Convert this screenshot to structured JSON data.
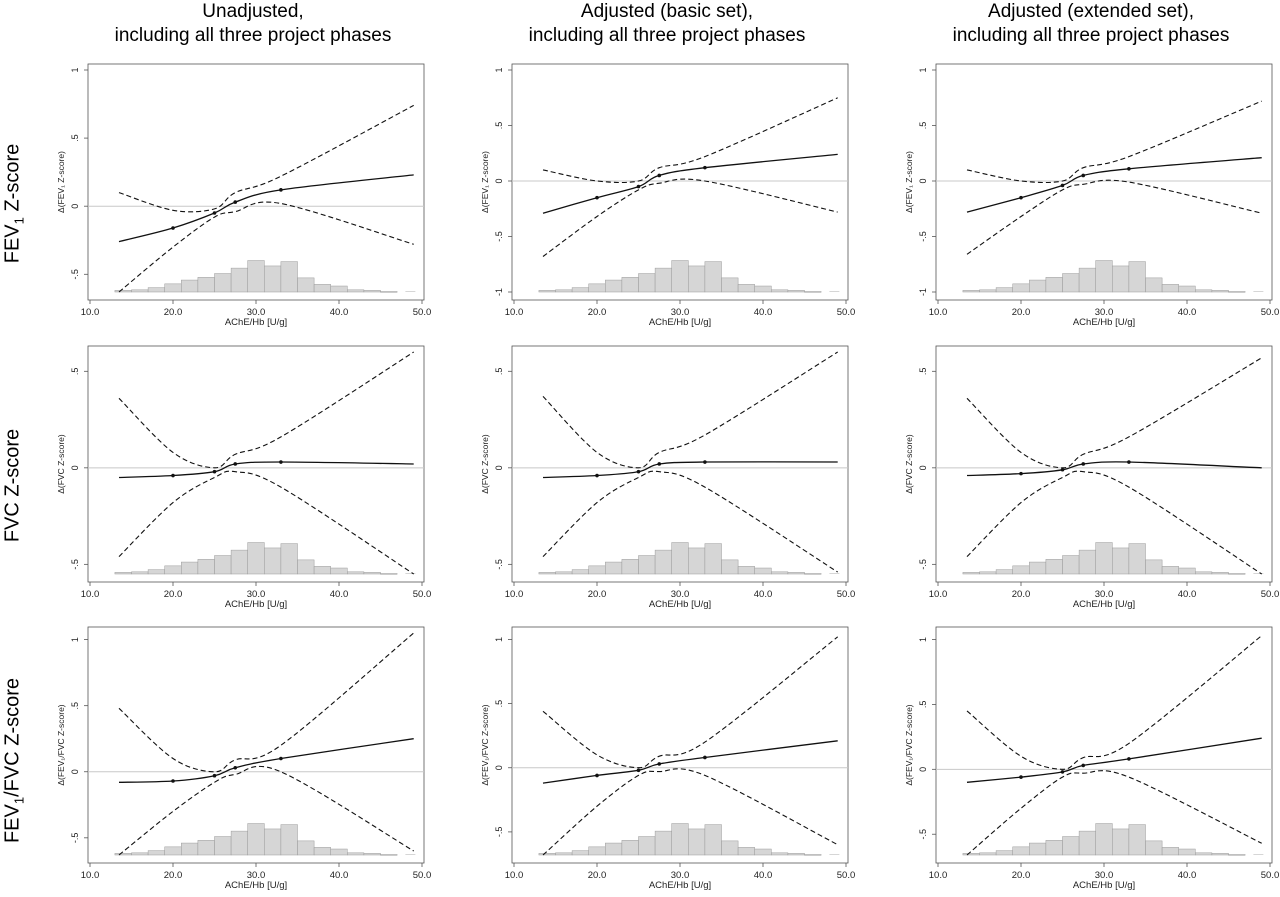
{
  "column_titles": [
    {
      "line1": "Unadjusted,",
      "line2": "including all three project phases"
    },
    {
      "line1": "Adjusted (basic set),",
      "line2": "including all three project phases"
    },
    {
      "line1": "Adjusted (extended set),",
      "line2": "including all three project phases"
    }
  ],
  "row_labels": [
    {
      "main": "FEV",
      "sub": "1",
      "rest": " Z-score"
    },
    {
      "main": "FVC Z-score",
      "sub": "",
      "rest": ""
    },
    {
      "main": "FEV",
      "sub": "1",
      "rest": "/FVC Z-score"
    }
  ],
  "colors": {
    "axis": "#555555",
    "reference_line": "#c8c8c8",
    "histogram_fill": "#d6d6d6",
    "histogram_stroke": "#9a9a9a",
    "estimate": "#111111"
  },
  "chart_data": [
    {
      "type": "line",
      "title": "Unadjusted, including all three project phases",
      "row": 0,
      "col": 0,
      "xlabel": "AChE/Hb [U/g]",
      "ylabel": "Δ(FEV₁ Z-score)",
      "xlim": [
        10,
        50
      ],
      "ylim": [
        -0.63,
        1.0
      ],
      "xticks": [
        "10.0",
        "20.0",
        "30.0",
        "40.0",
        "50.0"
      ],
      "yticks": [
        "-.5",
        "0",
        ".5",
        "1"
      ],
      "x": [
        13.5,
        20,
        25,
        27.5,
        33,
        49
      ],
      "series": [
        {
          "values": [
            -0.26,
            -0.16,
            -0.05,
            0.03,
            0.12,
            0.23
          ]
        },
        {
          "values": [
            0.1,
            -0.03,
            -0.02,
            0.1,
            0.22,
            0.74
          ]
        },
        {
          "values": [
            -0.63,
            -0.3,
            -0.08,
            -0.04,
            0.02,
            -0.28
          ]
        }
      ],
      "histogram": [
        0.03,
        0.04,
        0.08,
        0.15,
        0.22,
        0.27,
        0.34,
        0.44,
        0.58,
        0.48,
        0.56,
        0.26,
        0.14,
        0.11,
        0.04,
        0.03,
        0.01
      ]
    },
    {
      "type": "line",
      "title": "Adjusted (basic set), including all three project phases",
      "row": 0,
      "col": 1,
      "xlabel": "AChE/Hb [U/g]",
      "ylabel": "Δ(FEV₁ Z-score)",
      "xlim": [
        10,
        50
      ],
      "ylim": [
        -1.0,
        1.0
      ],
      "xticks": [
        "10.0",
        "20.0",
        "30.0",
        "40.0",
        "50.0"
      ],
      "yticks": [
        "-1",
        "-.5",
        "0",
        ".5",
        "1"
      ],
      "x": [
        13.5,
        20,
        25,
        27.5,
        33,
        49
      ],
      "series": [
        {
          "values": [
            -0.29,
            -0.15,
            -0.05,
            0.05,
            0.12,
            0.24
          ]
        },
        {
          "values": [
            0.1,
            0.0,
            0.0,
            0.12,
            0.22,
            0.75
          ]
        },
        {
          "values": [
            -0.68,
            -0.32,
            -0.08,
            -0.02,
            0.0,
            -0.28
          ]
        }
      ],
      "histogram": [
        0.03,
        0.04,
        0.08,
        0.15,
        0.22,
        0.27,
        0.34,
        0.44,
        0.58,
        0.48,
        0.56,
        0.26,
        0.14,
        0.11,
        0.04,
        0.03,
        0.01
      ]
    },
    {
      "type": "line",
      "title": "Adjusted (extended set), including all three project phases",
      "row": 0,
      "col": 2,
      "xlabel": "AChE/Hb [U/g]",
      "ylabel": "Δ(FEV₁ Z-score)",
      "xlim": [
        10,
        50
      ],
      "ylim": [
        -1.0,
        1.0
      ],
      "xticks": [
        "10.0",
        "20.0",
        "30.0",
        "40.0",
        "50.0"
      ],
      "yticks": [
        "-1",
        "-.5",
        "0",
        ".5",
        "1"
      ],
      "x": [
        13.5,
        20,
        25,
        27.5,
        33,
        49
      ],
      "series": [
        {
          "values": [
            -0.28,
            -0.15,
            -0.04,
            0.05,
            0.11,
            0.21
          ]
        },
        {
          "values": [
            0.1,
            0.0,
            0.0,
            0.12,
            0.22,
            0.72
          ]
        },
        {
          "values": [
            -0.66,
            -0.32,
            -0.08,
            -0.03,
            -0.01,
            -0.29
          ]
        }
      ],
      "histogram": [
        0.03,
        0.04,
        0.08,
        0.15,
        0.22,
        0.27,
        0.34,
        0.44,
        0.58,
        0.48,
        0.56,
        0.26,
        0.14,
        0.11,
        0.04,
        0.03,
        0.01
      ]
    },
    {
      "type": "line",
      "title": "Unadjusted, including all three project phases",
      "row": 1,
      "col": 0,
      "xlabel": "AChE/Hb [U/g]",
      "ylabel": "Δ(FVC Z-score)",
      "xlim": [
        10,
        50
      ],
      "ylim": [
        -0.55,
        0.6
      ],
      "xticks": [
        "10.0",
        "20.0",
        "30.0",
        "40.0",
        "50.0"
      ],
      "yticks": [
        "-.5",
        "0",
        ".5"
      ],
      "x": [
        13.5,
        20,
        25,
        27.5,
        33,
        49
      ],
      "series": [
        {
          "values": [
            -0.05,
            -0.04,
            -0.02,
            0.02,
            0.03,
            0.02
          ]
        },
        {
          "values": [
            0.36,
            0.08,
            0.0,
            0.07,
            0.16,
            0.6
          ]
        },
        {
          "values": [
            -0.46,
            -0.18,
            -0.05,
            -0.02,
            -0.1,
            -0.55
          ]
        }
      ],
      "histogram": [
        0.03,
        0.04,
        0.08,
        0.15,
        0.22,
        0.27,
        0.34,
        0.44,
        0.58,
        0.48,
        0.56,
        0.26,
        0.14,
        0.11,
        0.04,
        0.03,
        0.01
      ]
    },
    {
      "type": "line",
      "title": "Adjusted (basic set), including all three project phases",
      "row": 1,
      "col": 1,
      "xlabel": "AChE/Hb [U/g]",
      "ylabel": "Δ(FVC Z-score)",
      "xlim": [
        10,
        50
      ],
      "ylim": [
        -0.55,
        0.6
      ],
      "xticks": [
        "10.0",
        "20.0",
        "30.0",
        "40.0",
        "50.0"
      ],
      "yticks": [
        "-.5",
        "0",
        ".5"
      ],
      "x": [
        13.5,
        20,
        25,
        27.5,
        33,
        49
      ],
      "series": [
        {
          "values": [
            -0.05,
            -0.04,
            -0.02,
            0.02,
            0.03,
            0.03
          ]
        },
        {
          "values": [
            0.37,
            0.08,
            0.0,
            0.08,
            0.17,
            0.6
          ]
        },
        {
          "values": [
            -0.46,
            -0.18,
            -0.05,
            -0.02,
            -0.1,
            -0.54
          ]
        }
      ],
      "histogram": [
        0.03,
        0.04,
        0.08,
        0.15,
        0.22,
        0.27,
        0.34,
        0.44,
        0.58,
        0.48,
        0.56,
        0.26,
        0.14,
        0.11,
        0.04,
        0.03,
        0.01
      ]
    },
    {
      "type": "line",
      "title": "Adjusted (extended set), including all three project phases",
      "row": 1,
      "col": 2,
      "xlabel": "AChE/Hb [U/g]",
      "ylabel": "Δ(FVC Z-score)",
      "xlim": [
        10,
        50
      ],
      "ylim": [
        -0.55,
        0.6
      ],
      "xticks": [
        "10.0",
        "20.0",
        "30.0",
        "40.0",
        "50.0"
      ],
      "yticks": [
        "-.5",
        "0",
        ".5"
      ],
      "x": [
        13.5,
        20,
        25,
        27.5,
        33,
        49
      ],
      "series": [
        {
          "values": [
            -0.04,
            -0.03,
            -0.01,
            0.02,
            0.03,
            0.0
          ]
        },
        {
          "values": [
            0.36,
            0.08,
            0.0,
            0.07,
            0.16,
            0.57
          ]
        },
        {
          "values": [
            -0.46,
            -0.18,
            -0.05,
            -0.02,
            -0.1,
            -0.55
          ]
        }
      ],
      "histogram": [
        0.03,
        0.04,
        0.08,
        0.15,
        0.22,
        0.27,
        0.34,
        0.44,
        0.58,
        0.48,
        0.56,
        0.26,
        0.14,
        0.11,
        0.04,
        0.03,
        0.01
      ]
    },
    {
      "type": "line",
      "title": "Unadjusted, including all three project phases",
      "row": 2,
      "col": 0,
      "xlabel": "AChE/Hb [U/g]",
      "ylabel": "Δ(FEV₁/FVC Z-score)",
      "xlim": [
        10,
        50
      ],
      "ylim": [
        -0.63,
        1.05
      ],
      "xticks": [
        "10.0",
        "20.0",
        "30.0",
        "40.0",
        "50.0"
      ],
      "yticks": [
        "-.5",
        "0",
        ".5",
        "1"
      ],
      "x": [
        13.5,
        20,
        25,
        27.5,
        33,
        49
      ],
      "series": [
        {
          "values": [
            -0.08,
            -0.07,
            -0.03,
            0.03,
            0.1,
            0.25
          ]
        },
        {
          "values": [
            0.48,
            0.1,
            0.0,
            0.09,
            0.2,
            1.05
          ]
        },
        {
          "values": [
            -0.63,
            -0.3,
            -0.08,
            -0.02,
            0.0,
            -0.6
          ]
        }
      ],
      "histogram": [
        0.03,
        0.04,
        0.08,
        0.15,
        0.22,
        0.27,
        0.34,
        0.44,
        0.58,
        0.48,
        0.56,
        0.26,
        0.14,
        0.11,
        0.04,
        0.03,
        0.01
      ]
    },
    {
      "type": "line",
      "title": "Adjusted (basic set), including all three project phases",
      "row": 2,
      "col": 1,
      "xlabel": "AChE/Hb [U/g]",
      "ylabel": "Δ(FEV₁/FVC Z-score)",
      "xlim": [
        10,
        50
      ],
      "ylim": [
        -0.68,
        1.05
      ],
      "xticks": [
        "10.0",
        "20.0",
        "30.0",
        "40.0",
        "50.0"
      ],
      "yticks": [
        "-.5",
        "0",
        ".5",
        "1"
      ],
      "x": [
        13.5,
        20,
        25,
        27.5,
        33,
        49
      ],
      "series": [
        {
          "values": [
            -0.12,
            -0.06,
            -0.02,
            0.03,
            0.08,
            0.21
          ]
        },
        {
          "values": [
            0.44,
            0.1,
            0.0,
            0.09,
            0.2,
            1.02
          ]
        },
        {
          "values": [
            -0.68,
            -0.3,
            -0.06,
            -0.03,
            -0.06,
            -0.6
          ]
        }
      ],
      "histogram": [
        0.03,
        0.04,
        0.08,
        0.15,
        0.22,
        0.27,
        0.34,
        0.44,
        0.58,
        0.48,
        0.56,
        0.26,
        0.14,
        0.11,
        0.04,
        0.03,
        0.01
      ]
    },
    {
      "type": "line",
      "title": "Adjusted (extended set), including all three project phases",
      "row": 2,
      "col": 2,
      "xlabel": "AChE/Hb [U/g]",
      "ylabel": "Δ(FEV₁/FVC Z-score)",
      "xlim": [
        10,
        50
      ],
      "ylim": [
        -0.66,
        1.05
      ],
      "xticks": [
        "10.0",
        "20.0",
        "30.0",
        "40.0",
        "50.0"
      ],
      "yticks": [
        "-.5",
        "0",
        ".5",
        "1"
      ],
      "x": [
        13.5,
        20,
        25,
        27.5,
        33,
        49
      ],
      "series": [
        {
          "values": [
            -0.1,
            -0.06,
            -0.02,
            0.03,
            0.08,
            0.24
          ]
        },
        {
          "values": [
            0.45,
            0.1,
            0.0,
            0.09,
            0.2,
            1.03
          ]
        },
        {
          "values": [
            -0.66,
            -0.3,
            -0.06,
            -0.03,
            -0.06,
            -0.57
          ]
        }
      ],
      "histogram": [
        0.03,
        0.04,
        0.08,
        0.15,
        0.22,
        0.27,
        0.34,
        0.44,
        0.58,
        0.48,
        0.56,
        0.26,
        0.14,
        0.11,
        0.04,
        0.03,
        0.01
      ]
    }
  ]
}
